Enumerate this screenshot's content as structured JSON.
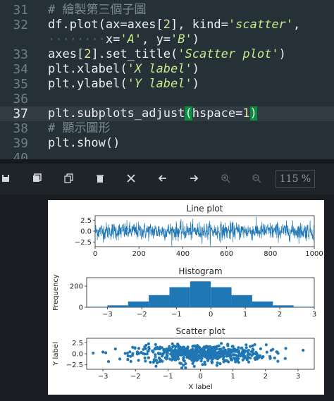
{
  "editor": {
    "lines": [
      {
        "num": "31",
        "tokens": [
          {
            "t": "# 繪製第三個子圖",
            "c": "cm"
          }
        ]
      },
      {
        "num": "32",
        "tokens": [
          {
            "t": "df.plot(ax=axes[",
            "c": "kw"
          },
          {
            "t": "2",
            "c": "num"
          },
          {
            "t": "], kind=",
            "c": "kw"
          },
          {
            "t": "'scatter'",
            "c": "str"
          },
          {
            "t": ",",
            "c": "kw"
          }
        ]
      },
      {
        "num": "",
        "tokens": [
          {
            "t": "········",
            "c": "dots"
          },
          {
            "t": "x=",
            "c": "kw"
          },
          {
            "t": "'A'",
            "c": "str"
          },
          {
            "t": ", y=",
            "c": "kw"
          },
          {
            "t": "'B'",
            "c": "str"
          },
          {
            "t": ")",
            "c": "kw"
          }
        ]
      },
      {
        "num": "33",
        "tokens": [
          {
            "t": "axes[",
            "c": "kw"
          },
          {
            "t": "2",
            "c": "num"
          },
          {
            "t": "].set_title(",
            "c": "kw"
          },
          {
            "t": "'Scatter plot'",
            "c": "str"
          },
          {
            "t": ")",
            "c": "kw"
          }
        ]
      },
      {
        "num": "34",
        "tokens": [
          {
            "t": "plt.xlabel(",
            "c": "kw"
          },
          {
            "t": "'X label'",
            "c": "str"
          },
          {
            "t": ")",
            "c": "kw"
          }
        ]
      },
      {
        "num": "35",
        "tokens": [
          {
            "t": "plt.ylabel(",
            "c": "kw"
          },
          {
            "t": "'Y label'",
            "c": "str"
          },
          {
            "t": ")",
            "c": "kw"
          }
        ]
      },
      {
        "num": "36",
        "tokens": []
      },
      {
        "num": "37",
        "tokens": [
          {
            "t": "plt.subplots_adjust",
            "c": "kw"
          },
          {
            "t": "(",
            "c": "paren"
          },
          {
            "t": "hspace=",
            "c": "kw"
          },
          {
            "t": "1",
            "c": "num"
          },
          {
            "t": ")",
            "c": "paren"
          }
        ],
        "current": true
      },
      {
        "num": "38",
        "tokens": [
          {
            "t": "# 顯示圖形",
            "c": "cm"
          }
        ]
      },
      {
        "num": "39",
        "tokens": [
          {
            "t": "plt.show()",
            "c": "kw"
          }
        ]
      },
      {
        "num": "40",
        "tokens": []
      }
    ]
  },
  "toolbar": {
    "save_icon": "save-icon",
    "save_all_icon": "save-all-icon",
    "copy_icon": "copy-icon",
    "delete_icon": "trash-icon",
    "delete_all_icon": "clear-all-icon",
    "back_icon": "arrow-left-icon",
    "forward_icon": "arrow-right-icon",
    "zoom_in_icon": "zoom-in-icon",
    "zoom_out_icon": "zoom-out-icon",
    "zoom_level": "115 %"
  },
  "chart_data": [
    {
      "type": "line",
      "title": "Line plot",
      "x_range": [
        0,
        1000
      ],
      "ylim": [
        -3.5,
        3.5
      ],
      "xticks": [
        "0",
        "200",
        "400",
        "600",
        "800",
        "1000"
      ],
      "yticks": [
        "2.5",
        "0.0",
        "−2.5"
      ],
      "color": "#1f77b4"
    },
    {
      "type": "bar",
      "title": "Histogram",
      "ylabel": "Frequency",
      "categories": [
        "-3.3",
        "-2.7",
        "-2.1",
        "-1.5",
        "-0.9",
        "-0.3",
        "0.3",
        "0.9",
        "1.5",
        "2.1",
        "2.7"
      ],
      "values": [
        5,
        18,
        55,
        115,
        190,
        245,
        190,
        115,
        55,
        18,
        5
      ],
      "xticks": [
        "−3",
        "−2",
        "−1",
        "0",
        "1",
        "2",
        "3"
      ],
      "yticks": [
        "200",
        "0"
      ],
      "ylim": [
        0,
        280
      ],
      "color": "#1f77b4"
    },
    {
      "type": "scatter",
      "title": "Scatter plot",
      "xlabel": "X label",
      "ylabel": "Y label",
      "xlim": [
        -3.5,
        3.5
      ],
      "ylim": [
        -3.5,
        3.5
      ],
      "xticks": [
        "−3",
        "−2",
        "−1",
        "0",
        "1",
        "2",
        "3"
      ],
      "yticks": [
        "2.5",
        "0.0",
        "−2.5"
      ],
      "color": "#1f77b4"
    }
  ]
}
